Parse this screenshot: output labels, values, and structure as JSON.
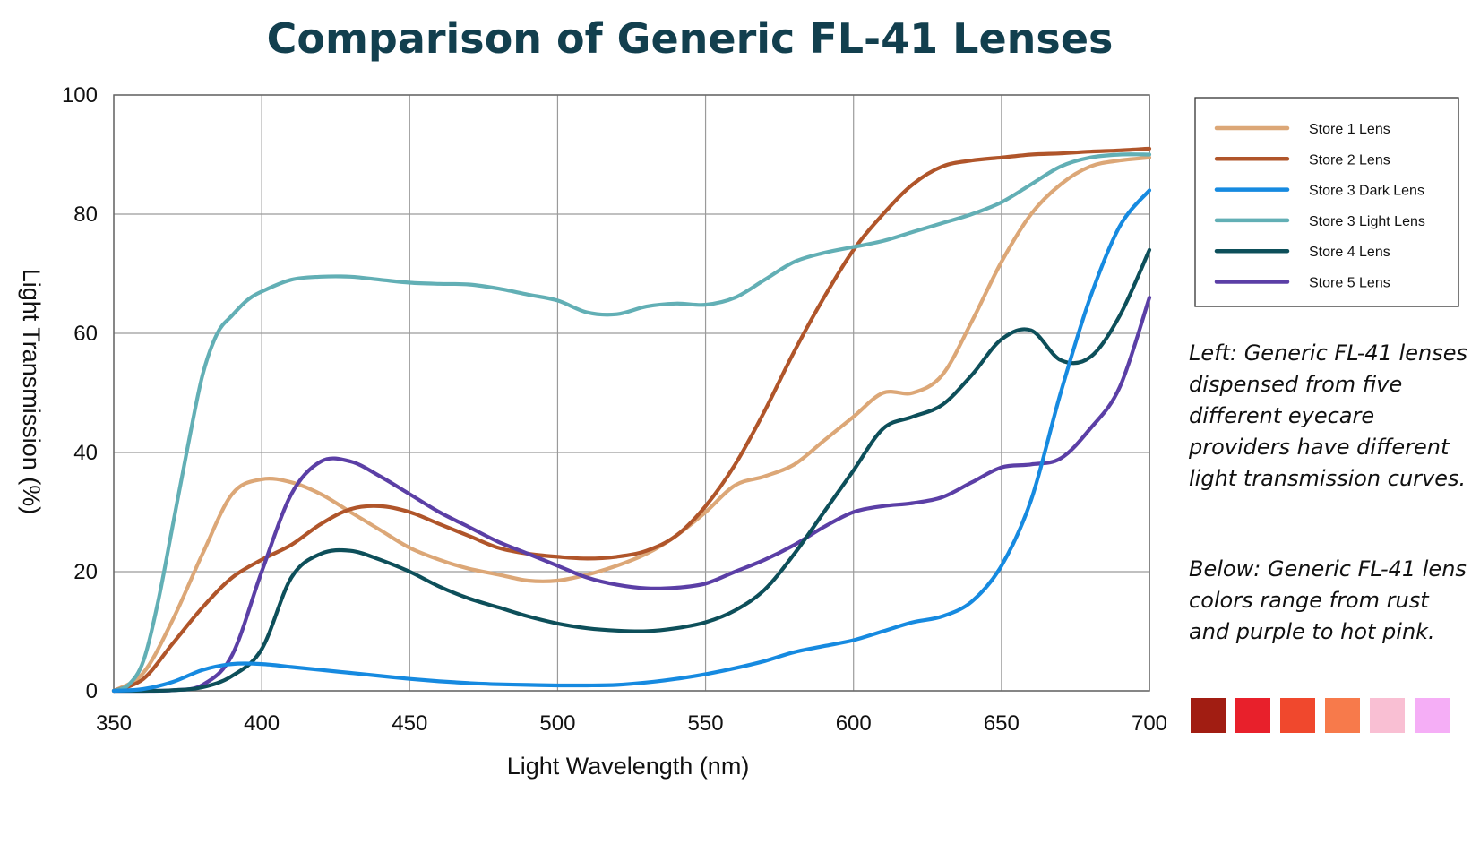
{
  "title": "Comparison of Generic FL-41 Lenses",
  "notes": {
    "left": "Left: Generic FL-41 lenses dispensed from five different eyecare providers have different light transmission curves.",
    "below": "Below: Generic FL-41 lens colors range from rust and purple to hot pink."
  },
  "swatches": [
    {
      "color": "#a11d12",
      "name": "rust"
    },
    {
      "color": "#e8202b",
      "name": "red"
    },
    {
      "color": "#f0482d",
      "name": "orange-red"
    },
    {
      "color": "#f77a4b",
      "name": "coral"
    },
    {
      "color": "#f9bfd3",
      "name": "light-pink"
    },
    {
      "color": "#f5aef6",
      "name": "hot-pink"
    }
  ],
  "chart_data": {
    "type": "line",
    "xlabel": "Light Wavelength (nm)",
    "ylabel": "Light Transmission (%)",
    "xlim": [
      350,
      700
    ],
    "ylim": [
      0,
      100
    ],
    "xticks": [
      350,
      400,
      450,
      500,
      550,
      600,
      650,
      700
    ],
    "yticks": [
      0,
      20,
      40,
      60,
      80,
      100
    ],
    "grid": true,
    "legend_position": "right",
    "series": [
      {
        "name": "Store 1 Lens",
        "color": "#dca777",
        "x": [
          350,
          360,
          370,
          380,
          390,
          400,
          410,
          420,
          430,
          440,
          450,
          460,
          470,
          480,
          490,
          500,
          510,
          520,
          530,
          540,
          550,
          560,
          570,
          580,
          590,
          600,
          610,
          620,
          630,
          640,
          650,
          660,
          670,
          680,
          690,
          700
        ],
        "y": [
          0,
          3,
          12,
          23,
          33,
          35.5,
          35,
          33,
          30,
          27,
          24,
          22,
          20.5,
          19.5,
          18.5,
          18.5,
          19.5,
          21,
          23,
          26,
          30,
          34.5,
          36,
          38,
          42,
          46,
          50,
          50,
          53,
          62,
          72,
          80,
          85,
          88,
          89,
          89.5
        ]
      },
      {
        "name": "Store 2 Lens",
        "color": "#b0552a",
        "x": [
          350,
          360,
          370,
          380,
          390,
          400,
          410,
          420,
          430,
          440,
          450,
          460,
          470,
          480,
          490,
          500,
          510,
          520,
          530,
          540,
          550,
          560,
          570,
          580,
          590,
          600,
          610,
          620,
          630,
          640,
          650,
          660,
          670,
          680,
          690,
          700
        ],
        "y": [
          0,
          2,
          8,
          14,
          19,
          22,
          24.5,
          28,
          30.5,
          31,
          30,
          28,
          26,
          24,
          23,
          22.5,
          22.2,
          22.5,
          23.5,
          26,
          31,
          38,
          47,
          57,
          66,
          74,
          80,
          85,
          88,
          89,
          89.5,
          90,
          90.2,
          90.5,
          90.7,
          91
        ]
      },
      {
        "name": "Store 3 Dark Lens",
        "color": "#168ae0",
        "x": [
          350,
          360,
          370,
          380,
          390,
          400,
          410,
          420,
          430,
          440,
          450,
          460,
          470,
          480,
          490,
          500,
          510,
          520,
          530,
          540,
          550,
          560,
          570,
          580,
          590,
          600,
          610,
          620,
          630,
          640,
          650,
          660,
          670,
          680,
          690,
          700
        ],
        "y": [
          0,
          0.3,
          1.5,
          3.5,
          4.5,
          4.5,
          4,
          3.5,
          3,
          2.5,
          2,
          1.6,
          1.3,
          1.1,
          1,
          0.9,
          0.9,
          1,
          1.4,
          2,
          2.8,
          3.8,
          5,
          6.5,
          7.5,
          8.5,
          10,
          11.5,
          12.5,
          15,
          21,
          32,
          50,
          66,
          78,
          84
        ]
      },
      {
        "name": "Store 3 Light Lens",
        "color": "#62afb5",
        "x": [
          350,
          355,
          360,
          365,
          370,
          375,
          380,
          385,
          390,
          395,
          400,
          410,
          420,
          430,
          440,
          450,
          460,
          470,
          480,
          490,
          500,
          510,
          520,
          530,
          540,
          550,
          560,
          570,
          580,
          590,
          600,
          610,
          620,
          630,
          640,
          650,
          660,
          670,
          680,
          690,
          700
        ],
        "y": [
          0,
          1,
          5,
          15,
          28,
          41,
          53,
          60,
          63,
          65.5,
          67,
          69,
          69.5,
          69.5,
          69,
          68.5,
          68.3,
          68.2,
          67.5,
          66.5,
          65.5,
          63.5,
          63.2,
          64.5,
          65,
          64.8,
          66,
          69,
          72,
          73.5,
          74.5,
          75.5,
          77,
          78.5,
          80,
          82,
          85,
          88,
          89.5,
          90,
          90
        ]
      },
      {
        "name": "Store 4 Lens",
        "color": "#0d4f5a",
        "x": [
          350,
          360,
          370,
          380,
          390,
          400,
          410,
          420,
          430,
          440,
          450,
          460,
          470,
          480,
          490,
          500,
          510,
          520,
          530,
          540,
          550,
          560,
          570,
          580,
          590,
          600,
          610,
          620,
          630,
          640,
          650,
          660,
          670,
          680,
          690,
          700
        ],
        "y": [
          0,
          0,
          0.1,
          0.6,
          2.5,
          7,
          19,
          23,
          23.5,
          22,
          20,
          17.5,
          15.5,
          14,
          12.5,
          11.3,
          10.5,
          10.1,
          10,
          10.5,
          11.5,
          13.5,
          17,
          23,
          30,
          37,
          44,
          46,
          48,
          53,
          59,
          60.5,
          55.5,
          56,
          63,
          74
        ]
      },
      {
        "name": "Store 5 Lens",
        "color": "#5b3fa6",
        "x": [
          350,
          360,
          370,
          380,
          390,
          400,
          410,
          420,
          430,
          440,
          450,
          460,
          470,
          480,
          490,
          500,
          510,
          520,
          530,
          540,
          550,
          560,
          570,
          580,
          590,
          600,
          610,
          620,
          630,
          640,
          650,
          660,
          670,
          680,
          690,
          700
        ],
        "y": [
          0,
          0,
          0.1,
          1,
          6,
          20,
          33,
          38.5,
          38.5,
          36,
          33,
          30,
          27.5,
          25,
          23,
          21,
          19,
          17.8,
          17.2,
          17.3,
          18,
          20,
          22,
          24.5,
          27.5,
          30,
          31,
          31.5,
          32.5,
          35,
          37.5,
          38,
          39,
          44,
          51,
          66
        ]
      }
    ]
  }
}
